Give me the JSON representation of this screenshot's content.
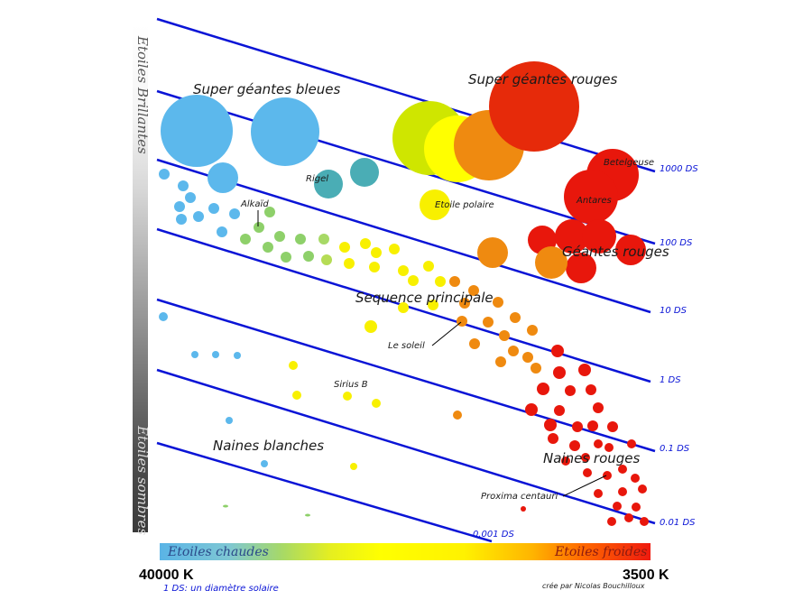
{
  "axes": {
    "luminosity_top": "Etoiles Brillantes",
    "luminosity_bottom": "Etoiles sombres",
    "temp_hot": "Etoiles chaudes",
    "temp_cold": "Etoiles froides",
    "temp_hot_value": "40000 K",
    "temp_cold_value": "3500 K"
  },
  "radius_lines": [
    "1000 DS",
    "100 DS",
    "10 DS",
    "1 DS",
    "0.1 DS",
    "0.01 DS",
    "0.001 DS"
  ],
  "regions": {
    "super_blue": "Super géantes bleues",
    "super_red": "Super géantes rouges",
    "red_giants": "Géantes rouges",
    "main_sequence": "Sequence principale",
    "white_dwarfs": "Naines blanches",
    "red_dwarfs": "Naines rouges"
  },
  "stars": {
    "betelgeuse": "Betelgeuse",
    "antares": "Antares",
    "rigel": "Rigel",
    "polaris": "Etoile polaire",
    "alkaid": "Alkaïd",
    "sun": "Le soleil",
    "sirius_b": "Sirius B",
    "proxima": "Proxima centauri"
  },
  "notes": {
    "ds_definition": "1 DS: un diamètre solaire",
    "credit": "crée par Nicolas Bouchilloux"
  },
  "colors": {
    "line": "#0a14d6",
    "blue_star": "#5cb8ec",
    "teal_star": "#4aadb5",
    "green_star": "#8ed06a",
    "yellow_star": "#f8f000",
    "orange_star": "#ef8a10",
    "red_star": "#e8170c"
  }
}
